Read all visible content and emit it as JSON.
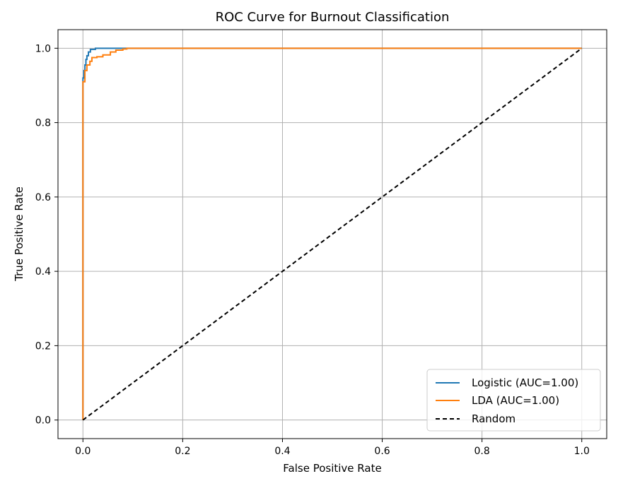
{
  "chart_data": {
    "type": "line",
    "title": "ROC Curve for Burnout Classification",
    "xlabel": "False Positive Rate",
    "ylabel": "True Positive Rate",
    "xlim": [
      -0.05,
      1.05
    ],
    "ylim": [
      -0.05,
      1.05
    ],
    "xticks": [
      "0.0",
      "0.2",
      "0.4",
      "0.6",
      "0.8",
      "1.0"
    ],
    "yticks": [
      "0.0",
      "0.2",
      "0.4",
      "0.6",
      "0.8",
      "1.0"
    ],
    "grid": true,
    "legend_position": "lower right",
    "series": [
      {
        "name": "Logistic (AUC=1.00)",
        "color": "#1f77b4",
        "style": "solid",
        "x": [
          0.0,
          0.0,
          0.002,
          0.002,
          0.004,
          0.004,
          0.006,
          0.006,
          0.008,
          0.008,
          0.011,
          0.011,
          0.015,
          0.015,
          0.025,
          0.025,
          0.085,
          1.0
        ],
        "y": [
          0.0,
          0.92,
          0.92,
          0.94,
          0.94,
          0.955,
          0.955,
          0.97,
          0.97,
          0.98,
          0.98,
          0.99,
          0.99,
          0.997,
          0.997,
          1.0,
          1.0,
          1.0
        ]
      },
      {
        "name": "LDA (AUC=1.00)",
        "color": "#ff7f0e",
        "style": "solid",
        "x": [
          0.0,
          0.0,
          0.004,
          0.004,
          0.008,
          0.008,
          0.014,
          0.014,
          0.018,
          0.018,
          0.028,
          0.028,
          0.04,
          0.04,
          0.055,
          0.055,
          0.066,
          0.066,
          0.08,
          0.08,
          0.088,
          0.088,
          1.0
        ],
        "y": [
          0.0,
          0.91,
          0.91,
          0.94,
          0.94,
          0.955,
          0.955,
          0.965,
          0.965,
          0.975,
          0.975,
          0.977,
          0.977,
          0.982,
          0.982,
          0.99,
          0.99,
          0.995,
          0.995,
          0.998,
          0.998,
          1.0,
          1.0
        ]
      },
      {
        "name": "Random",
        "color": "#000000",
        "style": "dashed",
        "x": [
          0.0,
          1.0
        ],
        "y": [
          0.0,
          1.0
        ]
      }
    ]
  }
}
